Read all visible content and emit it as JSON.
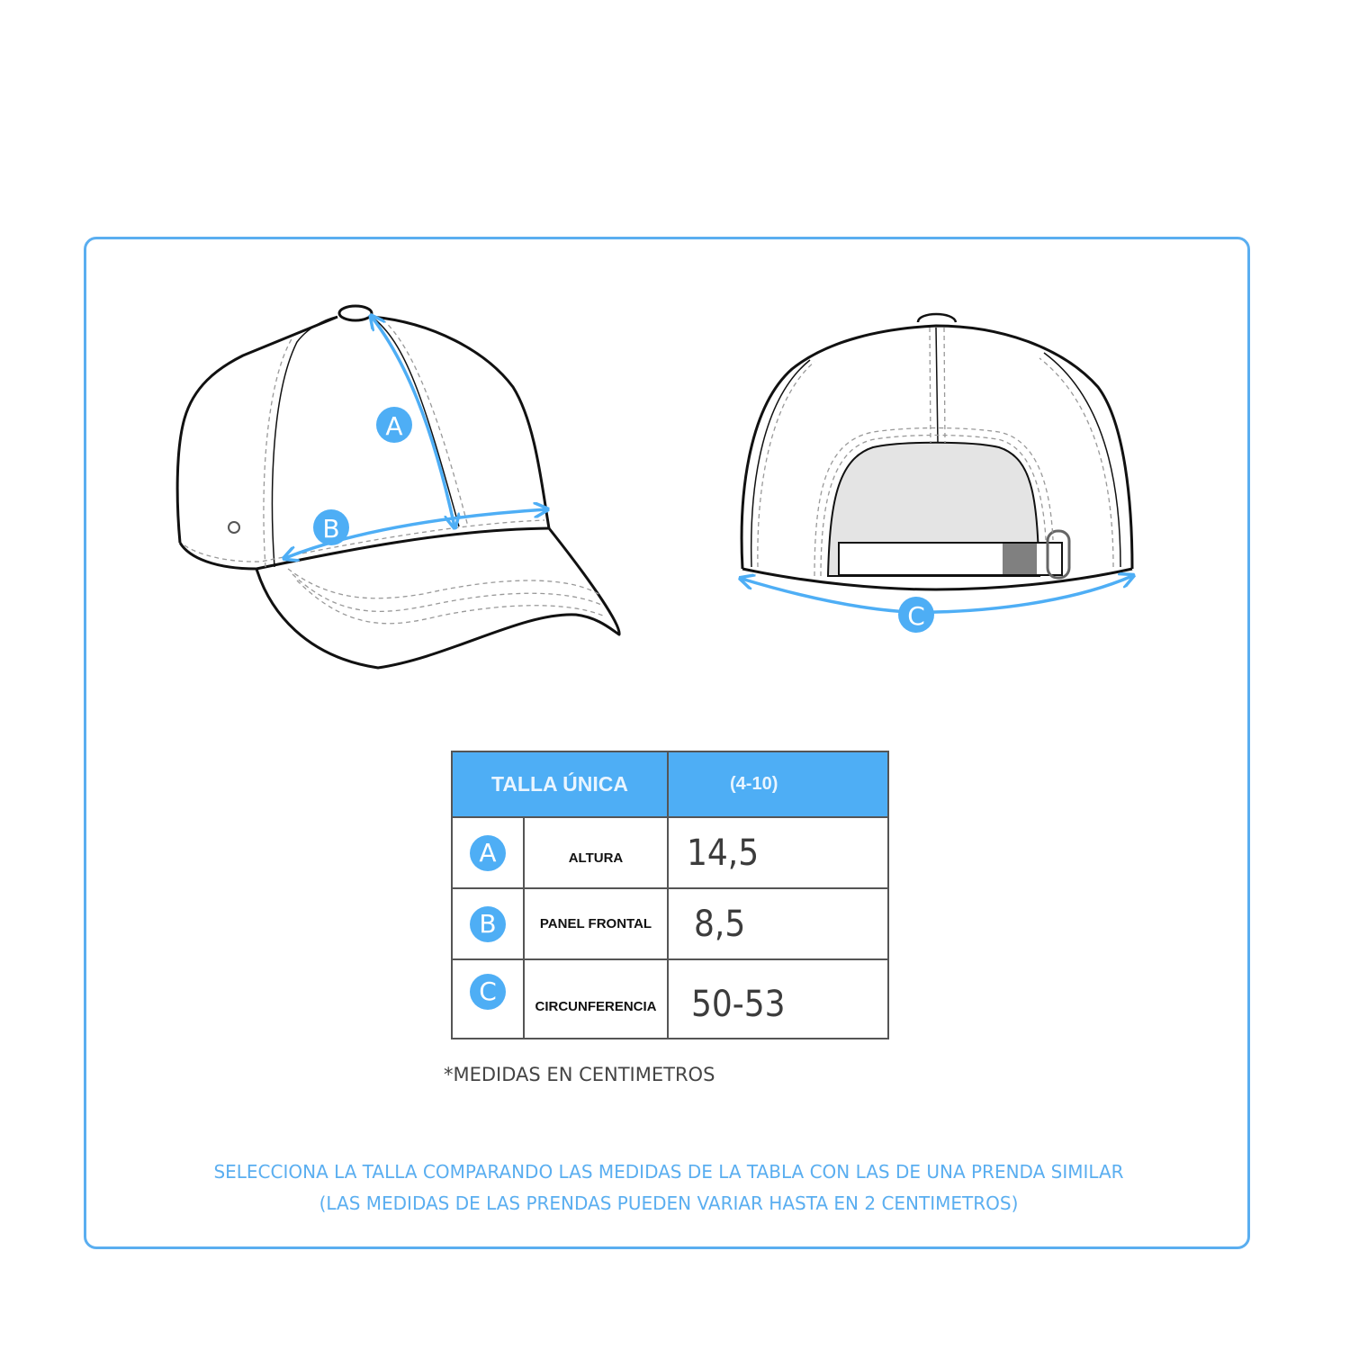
{
  "diagram": {
    "labels": {
      "a": "A",
      "b": "B",
      "c": "C"
    },
    "accent_color": "#4eaef5"
  },
  "table": {
    "header": {
      "size": "TALLA ÚNICA",
      "range": "(4-10)"
    },
    "rows": [
      {
        "badge": "A",
        "label": "ALTURA",
        "value": "14,5"
      },
      {
        "badge": "B",
        "label": "PANEL FRONTAL",
        "value": "8,5"
      },
      {
        "badge": "C",
        "label": "CIRCUNFERENCIA",
        "value": "50-53"
      }
    ]
  },
  "note": "*MEDIDAS EN CENTIMETROS",
  "footer": {
    "line1": "SELECCIONA LA TALLA COMPARANDO LAS MEDIDAS DE LA TABLA CON LAS DE UNA PRENDA SIMILAR",
    "line2": "(LAS MEDIDAS DE LAS PRENDAS PUEDEN VARIAR HASTA EN 2 CENTIMETROS)"
  }
}
